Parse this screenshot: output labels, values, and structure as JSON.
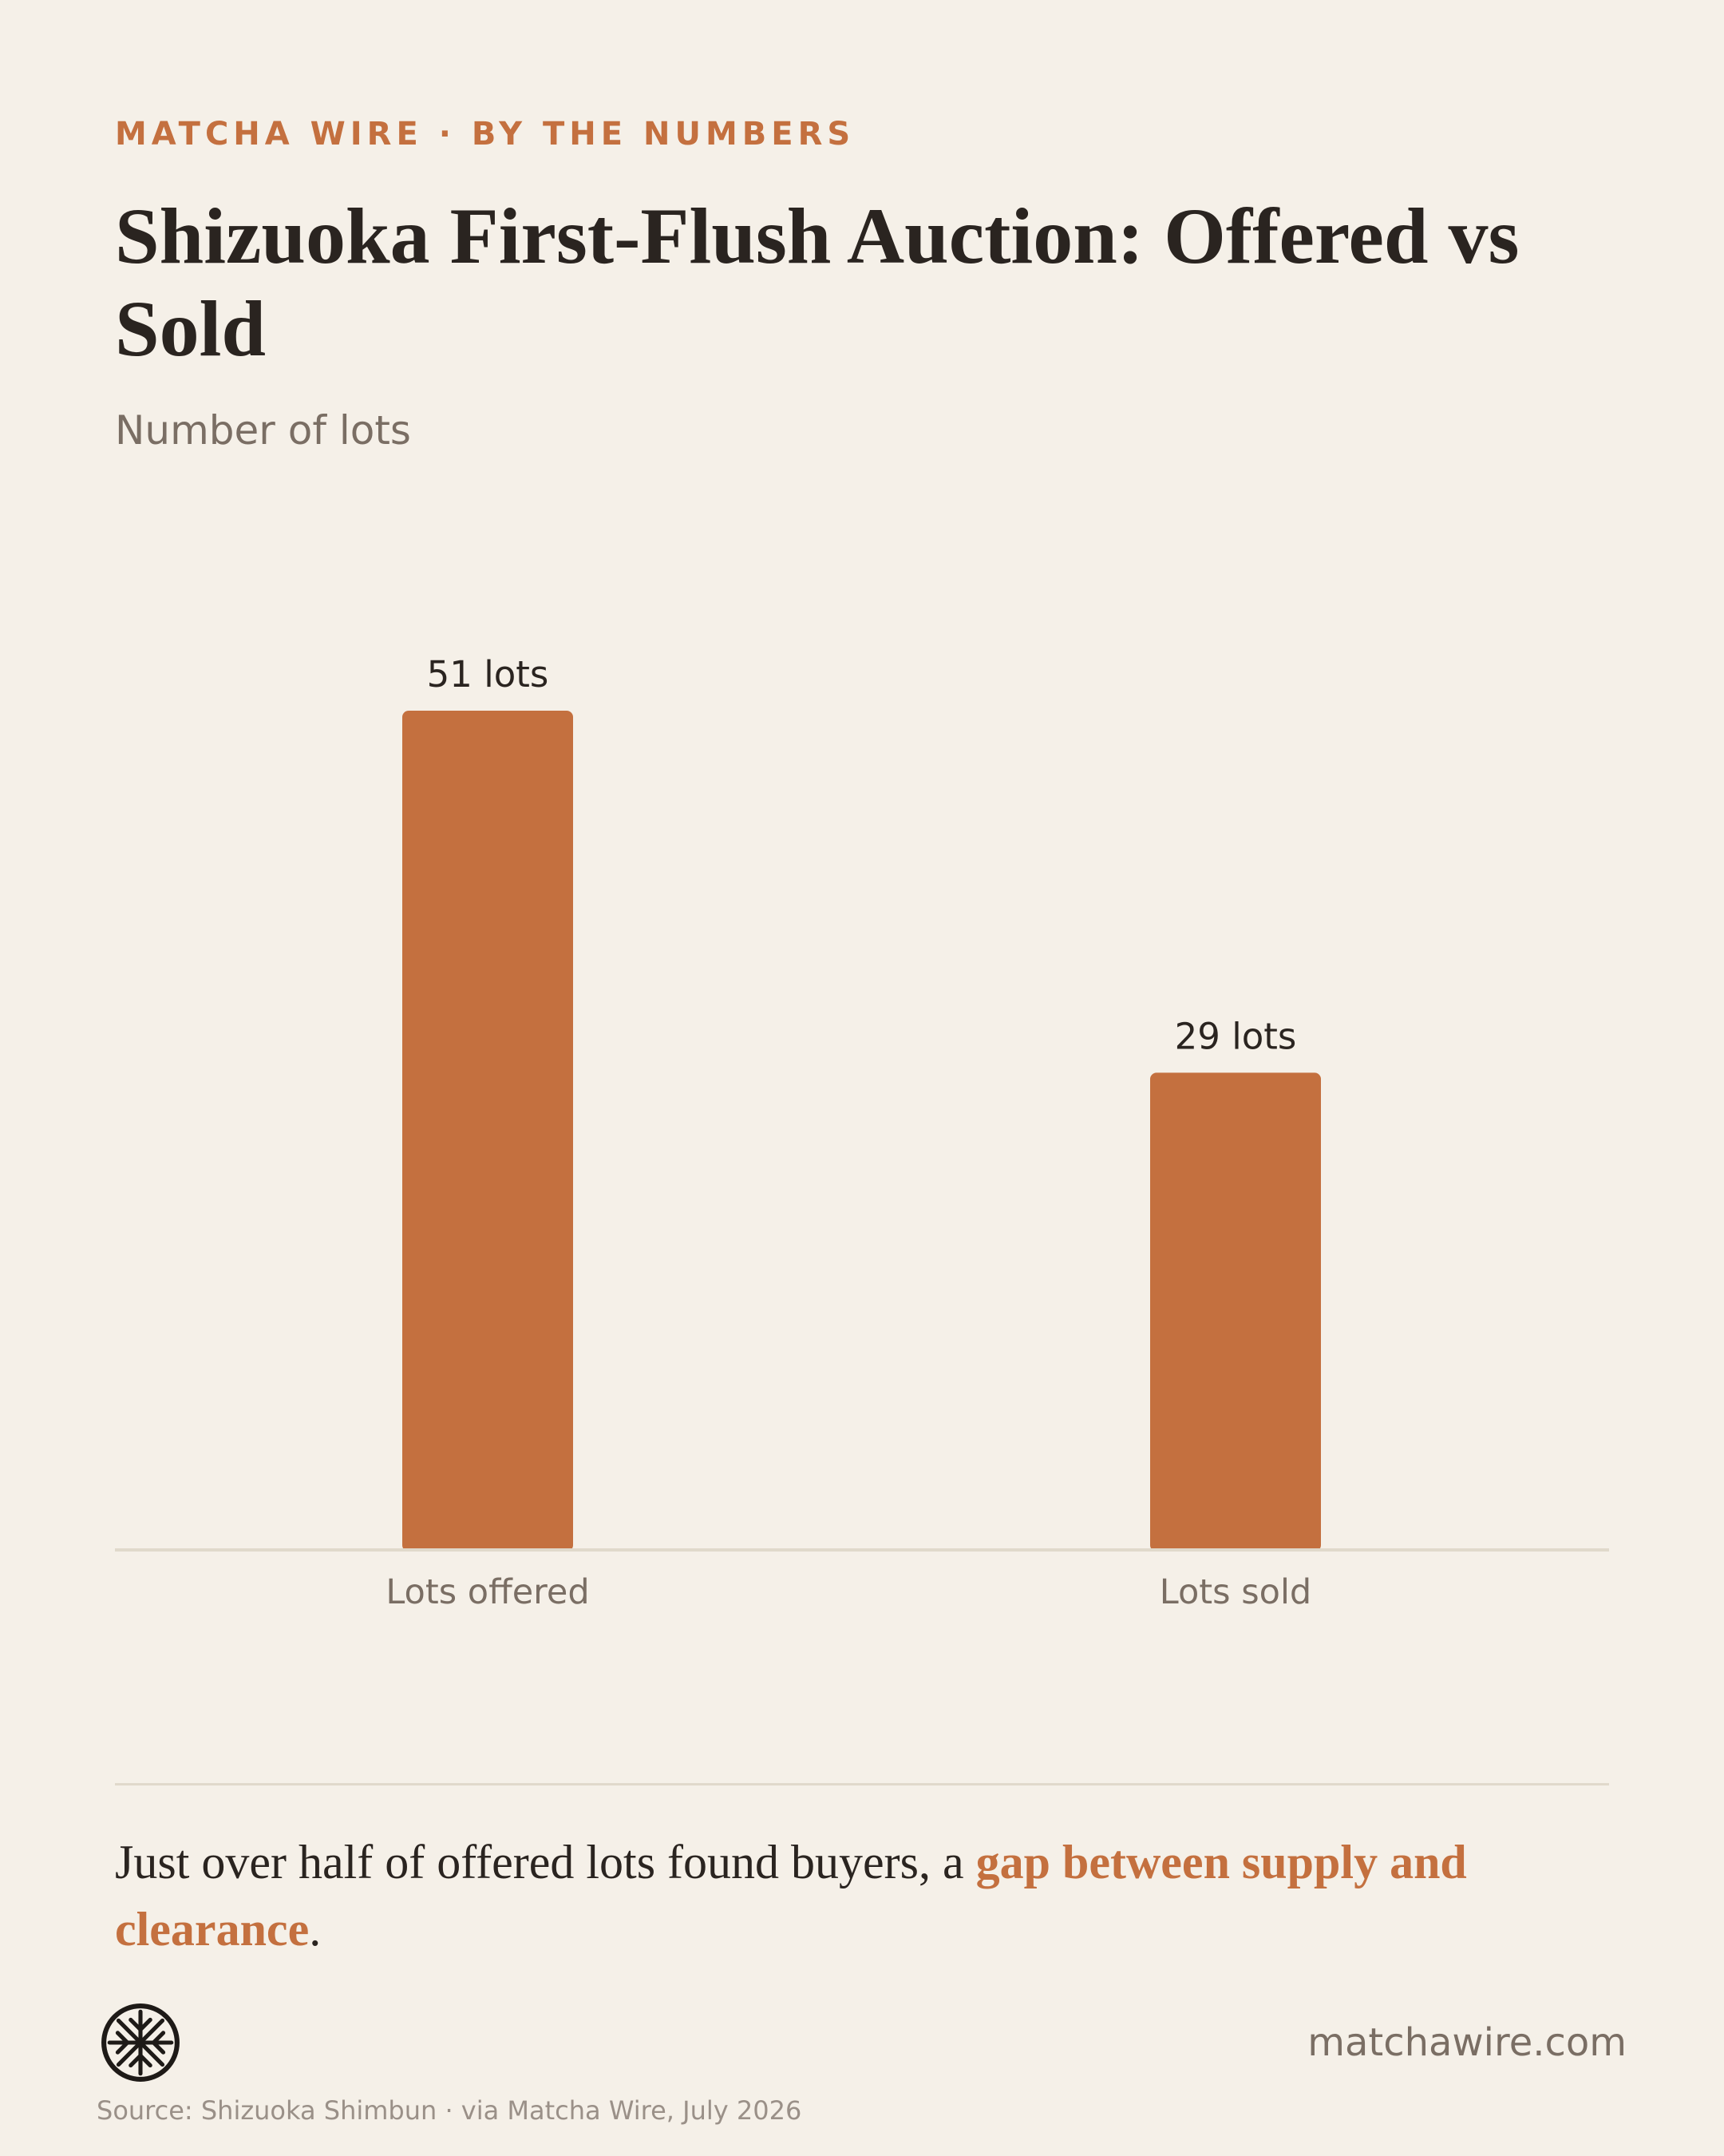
{
  "header": {
    "kicker": "MATCHA WIRE · BY THE NUMBERS",
    "title": "Shizuoka First-Flush Auction: Offered vs Sold",
    "subtitle": "Number of lots"
  },
  "chart_data": {
    "type": "bar",
    "title": "Shizuoka First-Flush Auction: Offered vs Sold",
    "subtitle": "Number of lots",
    "categories": [
      "Lots offered",
      "Lots sold"
    ],
    "values": [
      51,
      29
    ],
    "data_labels": [
      "51 lots",
      "29 lots"
    ],
    "xlabel": "",
    "ylabel": "",
    "ylim": [
      0,
      51
    ],
    "grid": false,
    "legend": "none",
    "bar_color": "#c4703f"
  },
  "takeaway": {
    "before": "Just over half of offered lots found buyers, a ",
    "highlight": "gap between supply and clearance",
    "after": "."
  },
  "footer": {
    "site": "matchawire.com",
    "source": "Source: Shizuoka Shimbun · via Matcha Wire, July 2026",
    "logo_icon": "wheel-logo-icon"
  },
  "colors": {
    "background": "#f5f0e8",
    "accent": "#c4703f",
    "text": "#2a2420",
    "muted": "#7a6e64",
    "rule": "#e0d9cb"
  }
}
